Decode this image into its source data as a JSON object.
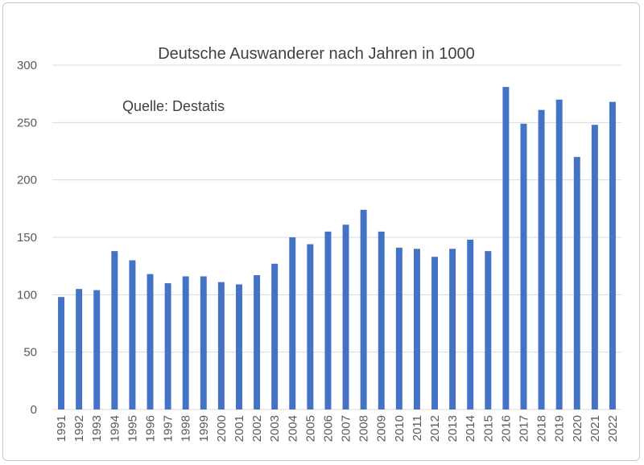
{
  "chart_data": {
    "type": "bar",
    "title": "Deutsche Auswanderer nach Jahren in 1000",
    "annotation": "Quelle: Destatis",
    "xlabel": "",
    "ylabel": "",
    "ylim": [
      0,
      300
    ],
    "yticks": [
      0,
      50,
      100,
      150,
      200,
      250,
      300
    ],
    "grid": true,
    "legend": "none",
    "bar_color": "#4472C4",
    "grid_color": "#d9d9d9",
    "categories": [
      "1991",
      "1992",
      "1993",
      "1994",
      "1995",
      "1996",
      "1997",
      "1998",
      "1999",
      "2000",
      "2001",
      "2002",
      "2003",
      "2004",
      "2005",
      "2006",
      "2007",
      "2008",
      "2009",
      "2010",
      "2011",
      "2012",
      "2013",
      "2014",
      "2015",
      "2016",
      "2017",
      "2018",
      "2019",
      "2020",
      "2021",
      "2022"
    ],
    "values": [
      98,
      105,
      104,
      138,
      130,
      118,
      110,
      116,
      116,
      111,
      109,
      117,
      127,
      150,
      144,
      155,
      161,
      174,
      155,
      141,
      140,
      133,
      140,
      148,
      138,
      281,
      249,
      261,
      270,
      220,
      248,
      268
    ]
  }
}
